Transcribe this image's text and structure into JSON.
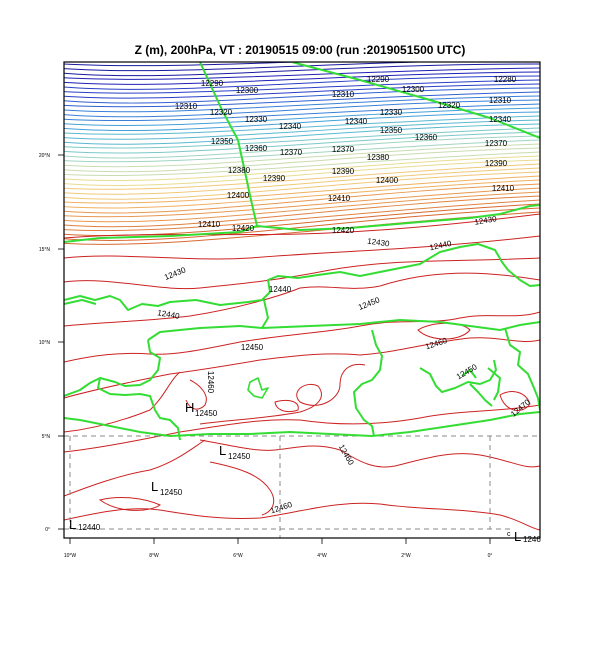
{
  "title": "Z (m), 200hPa, VT : 20190515  09:00 (run :2019051500 UTC)",
  "axes": {
    "lat_ticks": [
      "20°N",
      "15°N",
      "10°N",
      "5°N",
      "0°"
    ],
    "lon_ticks": [
      "10°W",
      "8°W",
      "6°W",
      "4°W",
      "2°W",
      "0°"
    ]
  },
  "contour_labels": [
    "12290",
    "12300",
    "12310",
    "12320",
    "12330",
    "12340",
    "12350",
    "12360",
    "12370",
    "12380",
    "12390",
    "12400",
    "12410",
    "12420",
    "12290",
    "12300",
    "12310",
    "12320",
    "12330",
    "12340",
    "12350",
    "12360",
    "12370",
    "12380",
    "12390",
    "12400",
    "12410",
    "12420",
    "12430",
    "12440",
    "12280",
    "12310",
    "12340",
    "12370",
    "12390",
    "12410",
    "12430",
    "12430",
    "12440",
    "12440",
    "12450",
    "12450",
    "12460",
    "12460",
    "12450",
    "12460",
    "12460",
    "12470"
  ],
  "extrema": [
    {
      "type": "H",
      "value": "12450"
    },
    {
      "type": "L",
      "value": "12450"
    },
    {
      "type": "L",
      "value": "12450"
    },
    {
      "type": "L",
      "value": "12440"
    },
    {
      "type": "L",
      "value": "1246"
    }
  ],
  "colors": {
    "contours_north": [
      "#1a1aa0",
      "#2020b8",
      "#2a3fc8",
      "#3060d0",
      "#3a80d8",
      "#44a0d8",
      "#5ab8d0",
      "#7cc8c8",
      "#a0d4c0",
      "#c8dcb0",
      "#e8dc90",
      "#f0c878",
      "#f0b060",
      "#e89850",
      "#e08040",
      "#d86830"
    ],
    "contours_south": "#cc2222",
    "borders": "#33dd33",
    "grid": "#888888"
  }
}
